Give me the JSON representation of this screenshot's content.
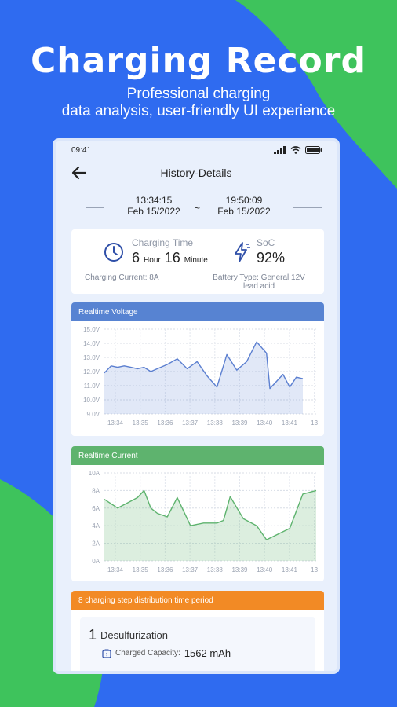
{
  "promo": {
    "title": "Charging Record",
    "subtitle_line1": "Professional charging",
    "subtitle_line2": "data analysis, user-friendly UI experience"
  },
  "status_bar": {
    "time": "09:41"
  },
  "nav": {
    "title": "History-Details",
    "back_icon": "arrow-left-icon"
  },
  "time_range": {
    "start_time": "13:34:15",
    "start_date": "Feb 15/2022",
    "separator": "~",
    "end_time": "19:50:09",
    "end_date": "Feb 15/2022"
  },
  "summary": {
    "charging_time_label": "Charging Time",
    "hours_value": "6",
    "hours_unit": "Hour",
    "minutes_value": "16",
    "minutes_unit": "Minute",
    "soc_label": "SoC",
    "soc_value": "92%",
    "charging_current": "Charging Current: 8A",
    "battery_type_line1": "Battery Type: General 12V",
    "battery_type_line2": "lead acid"
  },
  "colors": {
    "background": "#2f6bf0",
    "accent_green": "#3ec35c",
    "voltage_header": "#5783d2",
    "current_header": "#5eb36e",
    "step_header": "#f28a25"
  },
  "chart_data": [
    {
      "type": "line",
      "title": "Realtime Voltage",
      "ylim": [
        9.0,
        15.0
      ],
      "y_ticks": [
        "15.0V",
        "14.0V",
        "13.0V",
        "12.0V",
        "11.0V",
        "10.0V",
        "9.0V"
      ],
      "x_ticks": [
        "13:34",
        "13:35",
        "13:36",
        "13:37",
        "13:38",
        "13:39",
        "13:40",
        "13:41",
        "13"
      ],
      "grid": true,
      "points": [
        [
          13.33,
          11.9
        ],
        [
          13.67,
          12.4
        ],
        [
          14.0,
          12.3
        ],
        [
          14.33,
          12.4
        ],
        [
          14.67,
          12.3
        ],
        [
          15.0,
          12.2
        ],
        [
          15.33,
          12.3
        ],
        [
          15.67,
          12.0
        ],
        [
          16.0,
          12.2
        ],
        [
          16.5,
          12.5
        ],
        [
          17.0,
          12.9
        ],
        [
          17.5,
          12.2
        ],
        [
          18.0,
          12.7
        ],
        [
          18.5,
          11.7
        ],
        [
          19.0,
          10.9
        ],
        [
          19.5,
          13.2
        ],
        [
          20.0,
          12.1
        ],
        [
          20.5,
          12.7
        ],
        [
          21.0,
          14.1
        ],
        [
          21.5,
          13.3
        ],
        [
          21.67,
          10.8
        ],
        [
          22.33,
          11.8
        ],
        [
          22.67,
          10.9
        ],
        [
          23.0,
          11.6
        ],
        [
          23.33,
          11.5
        ]
      ]
    },
    {
      "type": "area",
      "title": "Realtime  Current",
      "ylim": [
        0,
        10
      ],
      "y_ticks": [
        "10A",
        "8A",
        "6A",
        "4A",
        "2A",
        "0A"
      ],
      "x_ticks": [
        "13:34",
        "13:35",
        "13:36",
        "13:37",
        "13:38",
        "13:39",
        "13:40",
        "13:41",
        "13"
      ],
      "grid": true,
      "points": [
        [
          13.33,
          7.0
        ],
        [
          14.0,
          6.0
        ],
        [
          15.0,
          7.2
        ],
        [
          15.33,
          8.0
        ],
        [
          15.67,
          6.0
        ],
        [
          16.0,
          5.4
        ],
        [
          16.5,
          5.0
        ],
        [
          17.0,
          7.2
        ],
        [
          17.67,
          4.0
        ],
        [
          18.33,
          4.3
        ],
        [
          19.0,
          4.3
        ],
        [
          19.33,
          4.6
        ],
        [
          19.67,
          7.3
        ],
        [
          20.33,
          4.8
        ],
        [
          21.0,
          4.0
        ],
        [
          21.5,
          2.4
        ],
        [
          22.67,
          3.7
        ],
        [
          23.33,
          7.6
        ],
        [
          24.0,
          8.0
        ]
      ]
    }
  ],
  "steps": {
    "header": "8 charging step distribution time period",
    "items": [
      {
        "number": "1",
        "name": "Desulfurization",
        "capacity_label": "Charged Capacity:",
        "capacity_value": "1562 mAh"
      }
    ]
  }
}
